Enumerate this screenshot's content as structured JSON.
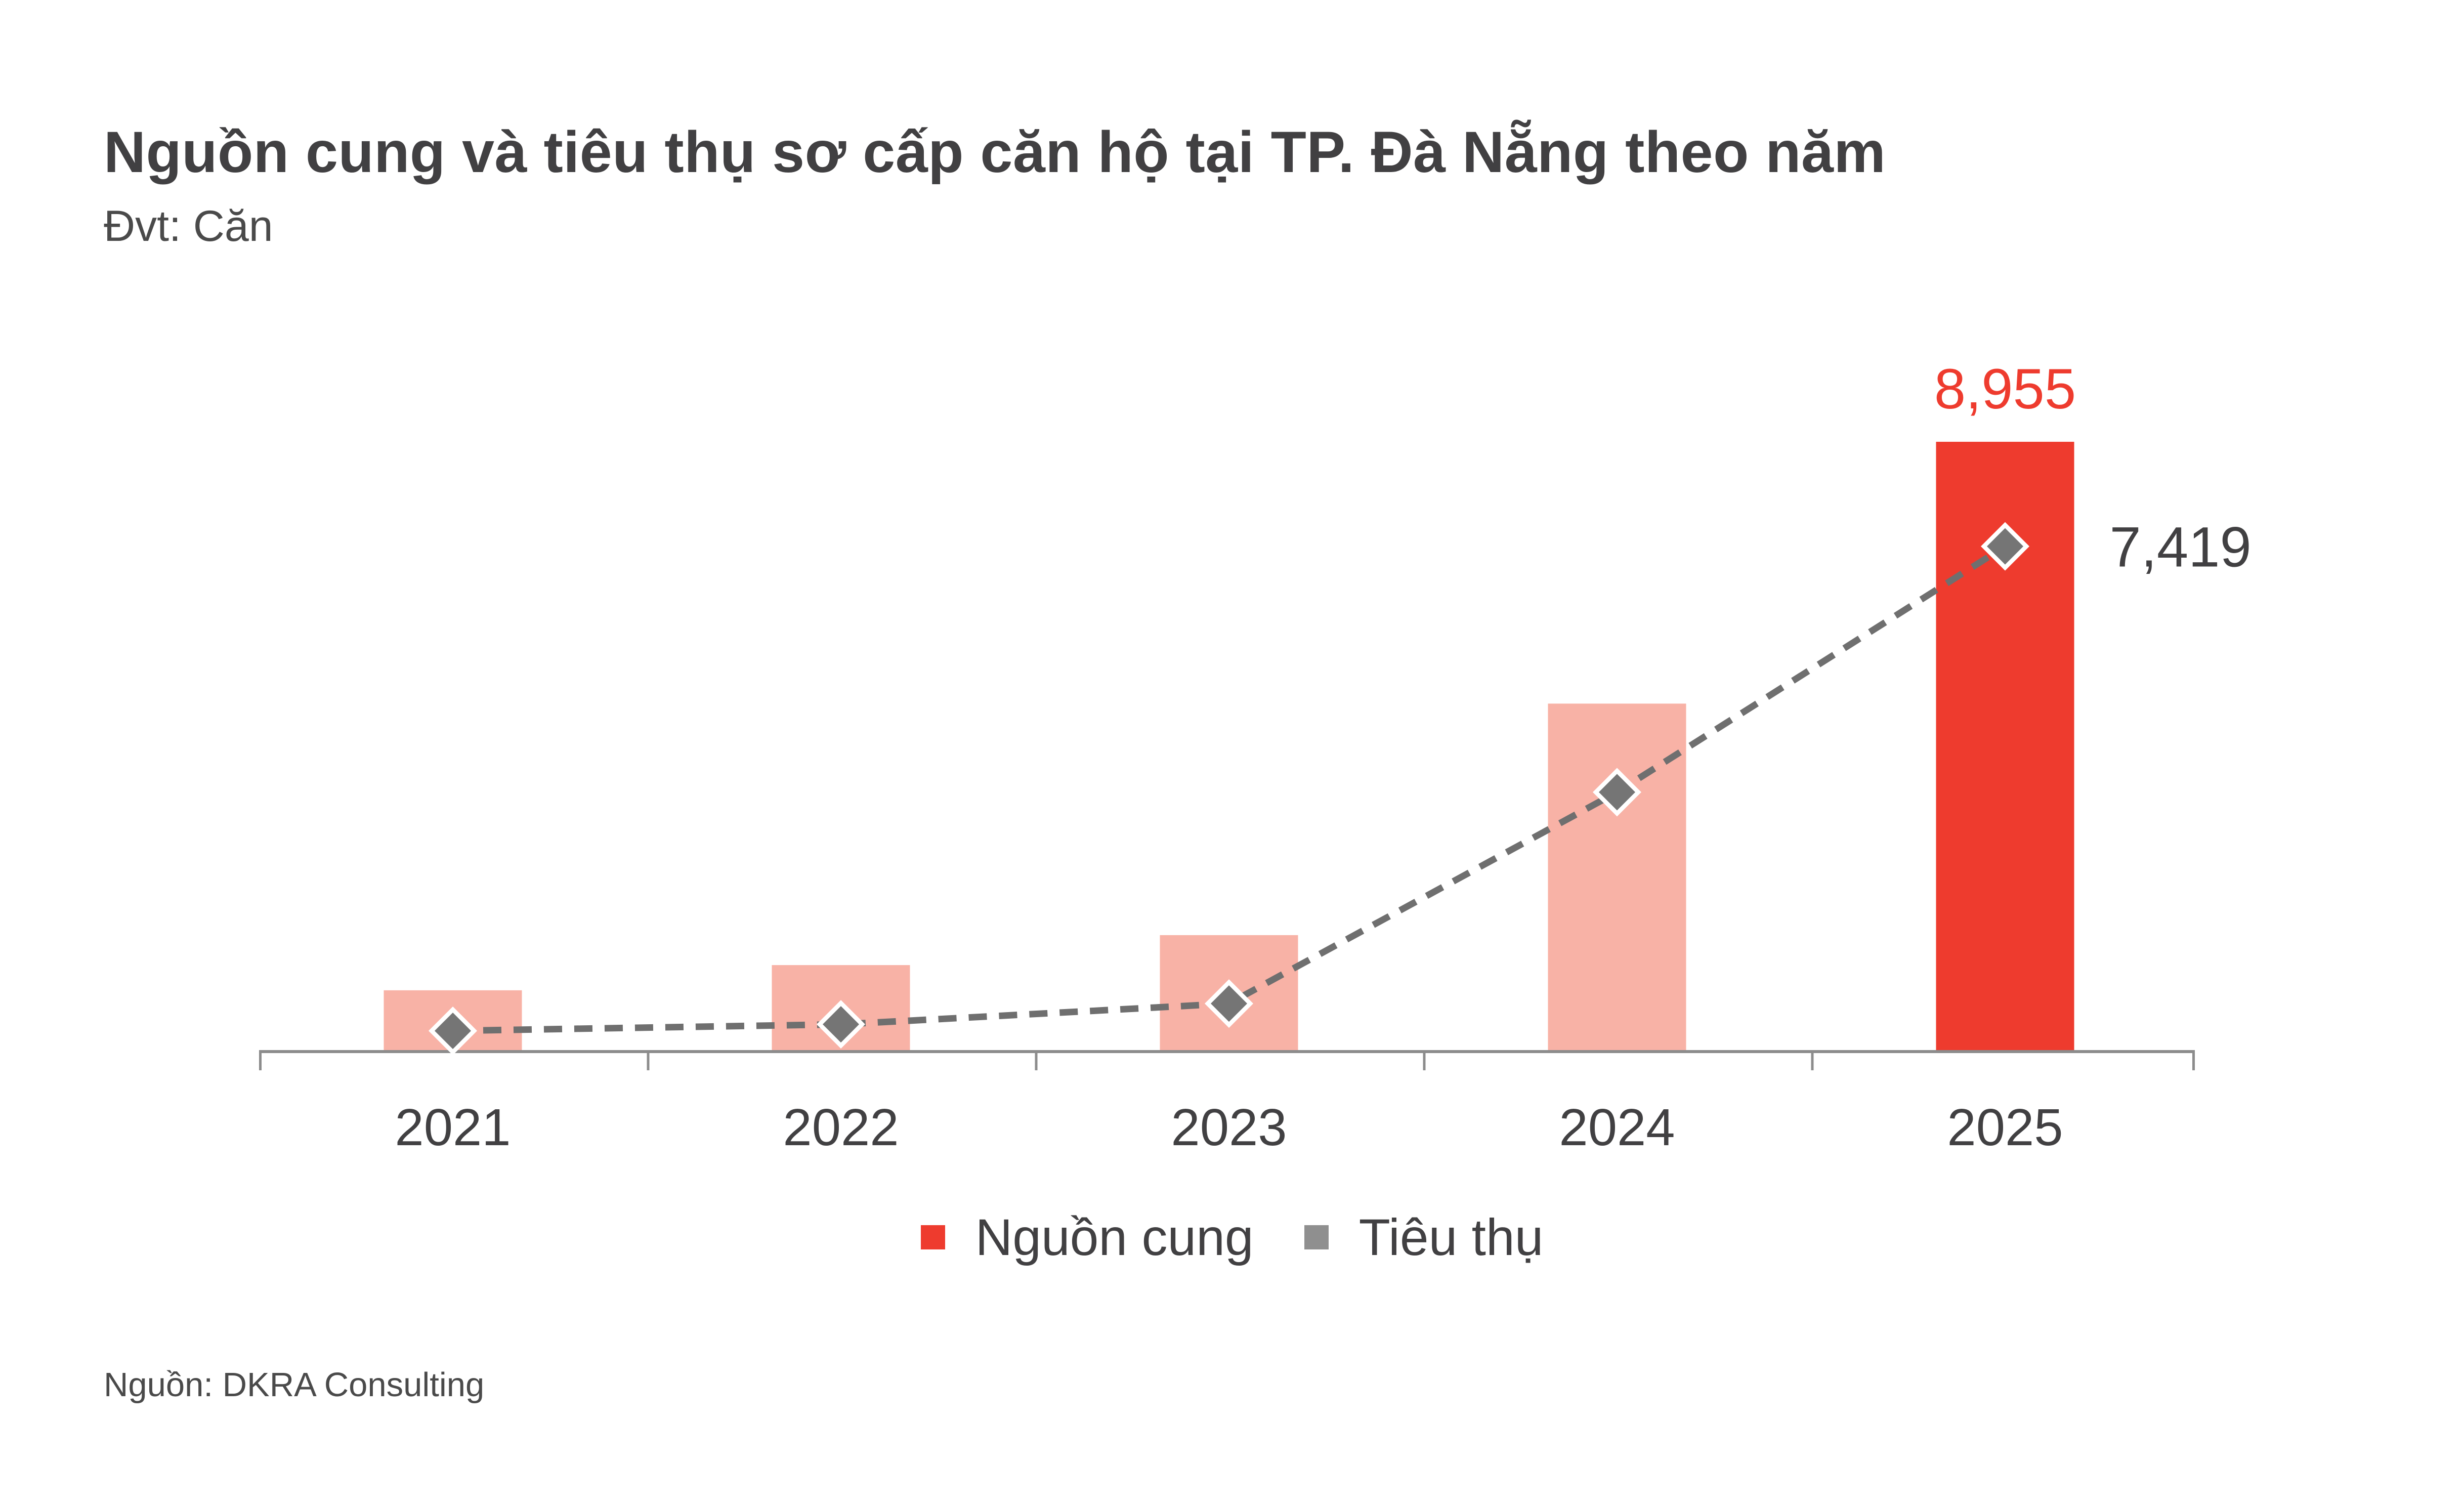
{
  "header": {
    "title": "Nguồn cung và tiêu thụ sơ cấp căn hộ tại TP. Đà Nẵng theo năm",
    "unit_label": "Đvt: Căn"
  },
  "footer": {
    "source": "Nguồn: DKRA Consulting"
  },
  "legend": {
    "items": [
      {
        "label": "Nguồn cung",
        "color": "#EE3B2E"
      },
      {
        "label": "Tiêu thụ",
        "color": "#8F8F8F"
      }
    ]
  },
  "colors": {
    "bar_default": "#F8B2A6",
    "bar_highlight": "#EE3B2E",
    "line": "#6F6F6F",
    "marker_fill": "#757575",
    "marker_border": "#FFFFFF",
    "axis": "#8C8C8C",
    "text_dark": "#414042",
    "label_red": "#EE3B2E"
  },
  "chart_data": {
    "type": "combo",
    "title": "Nguồn cung và tiêu thụ sơ cấp căn hộ tại TP. Đà Nẵng theo năm",
    "unit": "Căn",
    "categories": [
      "2021",
      "2022",
      "2023",
      "2024",
      "2025"
    ],
    "series": [
      {
        "name": "Nguồn cung",
        "type": "bar",
        "values": [
          900,
          1270,
          1710,
          5110,
          8955
        ],
        "highlight_index": 4
      },
      {
        "name": "Tiêu thụ",
        "type": "line",
        "values": [
          305,
          400,
          705,
          3810,
          7419
        ]
      }
    ],
    "data_labels": [
      {
        "series_index": 0,
        "category_index": 4,
        "text": "8,955",
        "color": "#EE3B2E",
        "position": "above-bar"
      },
      {
        "series_index": 1,
        "category_index": 4,
        "text": "7,419",
        "color": "#414042",
        "position": "right-of-marker"
      }
    ],
    "ylim": [
      0,
      9500
    ],
    "grid": false,
    "legend_position": "bottom"
  }
}
